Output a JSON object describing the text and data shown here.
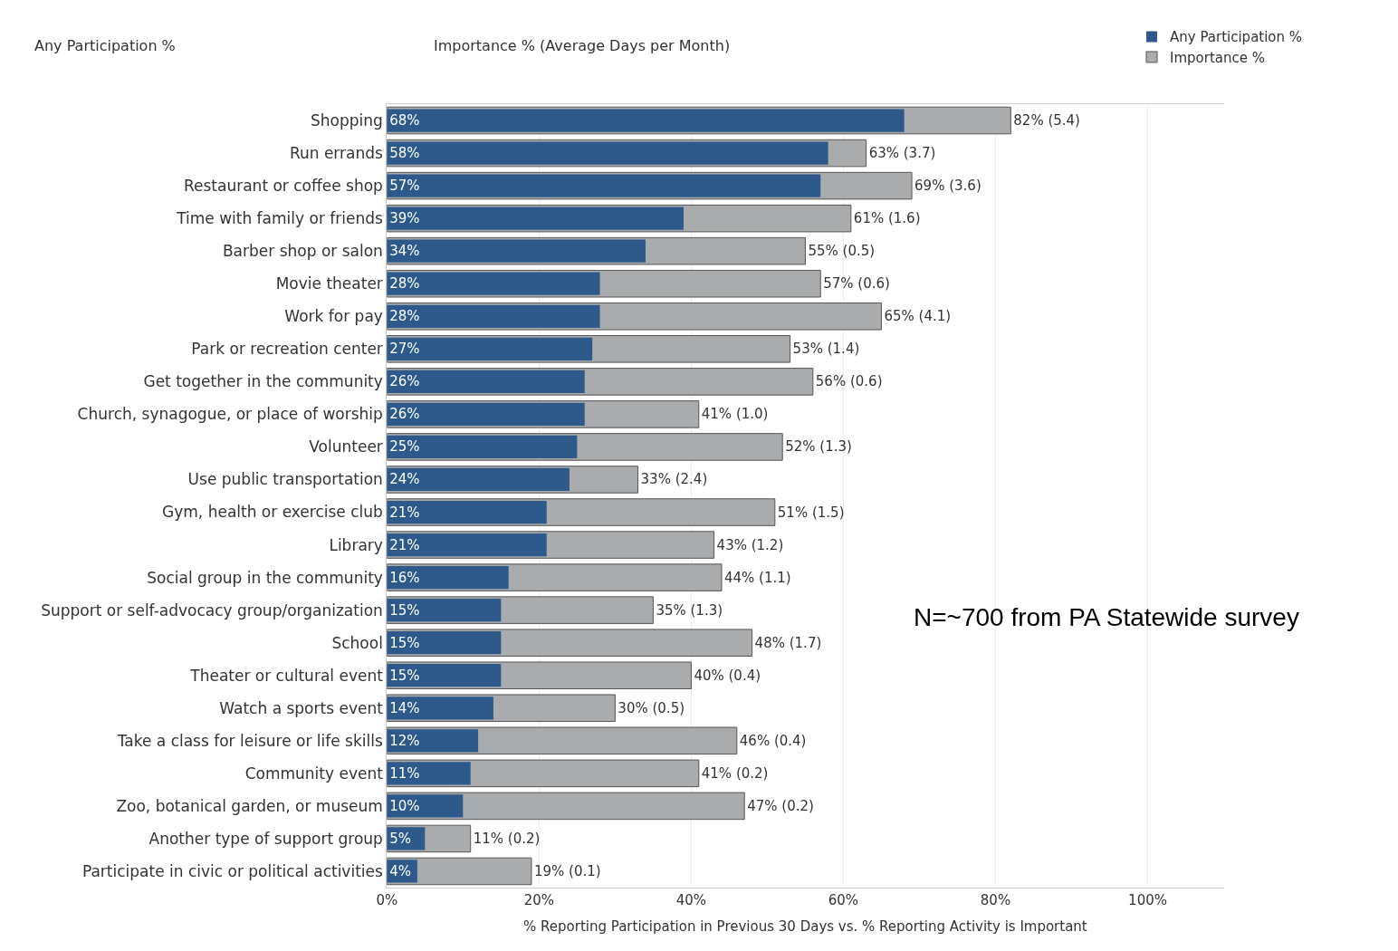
{
  "chart_data": {
    "type": "bar",
    "orientation": "horizontal",
    "xlabel": "% Reporting Participation in Previous 30 Days vs. % Reporting Activity is Important",
    "categories": [
      "Shopping",
      "Run errands",
      "Restaurant or coffee shop",
      "Time with family or friends",
      "Barber shop or salon",
      "Movie theater",
      "Work for pay",
      "Park or recreation center",
      "Get together in the community",
      "Church, synagogue, or place of worship",
      "Volunteer",
      "Use public transportation",
      "Gym, health or exercise club",
      "Library",
      "Social group in the community",
      "Support or self-advocacy group/organization",
      "School",
      "Theater or cultural event",
      "Watch a sports event",
      "Take a class for leisure or life skills",
      "Community event",
      "Zoo, botanical garden, or museum",
      "Another type of support group",
      "Participate in civic or political activities"
    ],
    "series": [
      {
        "name": "Importance %",
        "color": "#a9abac",
        "values": [
          82,
          63,
          69,
          61,
          55,
          57,
          65,
          53,
          56,
          41,
          52,
          33,
          51,
          43,
          44,
          35,
          48,
          40,
          30,
          46,
          41,
          47,
          11,
          19
        ],
        "value_labels": [
          "82% (5.4)",
          "63% (3.7)",
          "69% (3.6)",
          "61% (1.6)",
          "55% (0.5)",
          "57% (0.6)",
          "65% (4.1)",
          "53% (1.4)",
          "56% (0.6)",
          "41% (1.0)",
          "52% (1.3)",
          "33% (2.4)",
          "51% (1.5)",
          "43% (1.2)",
          "44% (1.1)",
          "35% (1.3)",
          "48% (1.7)",
          "40% (0.4)",
          "30% (0.5)",
          "46% (0.4)",
          "41% (0.2)",
          "47% (0.2)",
          "11% (0.2)",
          "19% (0.1)"
        ]
      },
      {
        "name": "Any Participation %",
        "color": "#2d5a8a",
        "values": [
          68,
          58,
          57,
          39,
          34,
          28,
          28,
          27,
          26,
          26,
          25,
          24,
          21,
          21,
          16,
          15,
          15,
          15,
          14,
          12,
          11,
          10,
          5,
          4
        ],
        "value_labels": [
          "68%",
          "58%",
          "57%",
          "39%",
          "34%",
          "28%",
          "28%",
          "27%",
          "26%",
          "26%",
          "25%",
          "24%",
          "21%",
          "21%",
          "16%",
          "15%",
          "15%",
          "15%",
          "14%",
          "12%",
          "11%",
          "10%",
          "5%",
          "4%"
        ]
      }
    ],
    "xlim": [
      0,
      110
    ],
    "xticks": [
      {
        "value": 0,
        "label": "0%"
      },
      {
        "value": 20,
        "label": "20%"
      },
      {
        "value": 40,
        "label": "40%"
      },
      {
        "value": 60,
        "label": "60%"
      },
      {
        "value": 80,
        "label": "80%"
      },
      {
        "value": 100,
        "label": "100%"
      }
    ],
    "grid": "x",
    "legend": "top right",
    "annotations": [
      "Any Participation %",
      "Importance % (Average Days per Month)",
      "N=~700 from PA Statewide survey"
    ]
  }
}
